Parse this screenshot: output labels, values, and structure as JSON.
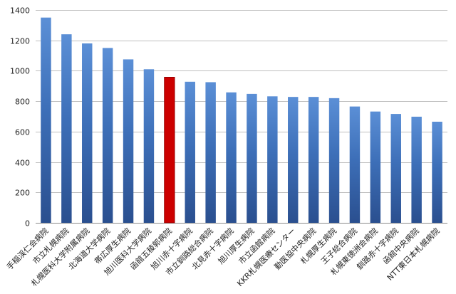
{
  "chart_data": {
    "type": "bar",
    "title": "",
    "xlabel": "",
    "ylabel": "",
    "ylim": [
      0,
      1400
    ],
    "yticks": [
      0,
      200,
      400,
      600,
      800,
      1000,
      1200,
      1400
    ],
    "grid": true,
    "legend": "none",
    "categories": [
      "手稲渓仁会病院",
      "市立札幌病院",
      "札幌医科大学附属病院",
      "北海道大学病院",
      "帯広厚生病院",
      "旭川医科大学病院",
      "函館五稜郭病院",
      "旭川赤十字病院",
      "市立釧路総合病院",
      "北見赤十字病院",
      "旭川厚生病院",
      "市立函館病院",
      "KKR札幌医療センター",
      "勤医協中央病院",
      "札幌厚生病院",
      "王子総合病院",
      "札幌東徳洲会病院",
      "釧路赤十字病院",
      "函館中央病院",
      "NTT東日本札幌病院"
    ],
    "values": [
      1350,
      1240,
      1180,
      1150,
      1075,
      1010,
      958,
      928,
      925,
      858,
      848,
      832,
      828,
      828,
      820,
      765,
      732,
      716,
      698,
      665
    ],
    "highlight_index": 6,
    "colors": {
      "bar_top": "#5b8fd6",
      "bar_mid": "#3d6fb8",
      "bar_bottom": "#2a4f8f",
      "highlight": "#cc0000",
      "highlight_edge": "#8b0000"
    }
  }
}
